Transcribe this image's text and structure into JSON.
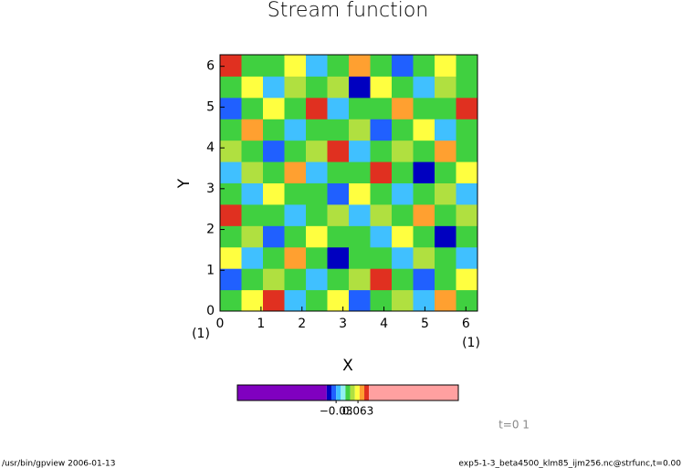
{
  "chart_data": {
    "type": "heatmap",
    "title": "Stream function",
    "xlabel": "X",
    "ylabel": "Y",
    "x_units": "(1)",
    "y_units": "(1)",
    "xlim": [
      0,
      6.2832
    ],
    "ylim": [
      0,
      6.2832
    ],
    "xticks": [
      0,
      1,
      2,
      3,
      4,
      5,
      6
    ],
    "yticks": [
      0,
      1,
      2,
      3,
      4,
      5,
      6
    ],
    "z": [
      [
        0.02,
        0.06,
        0.09,
        -0.02,
        0.02,
        0.06,
        -0.04,
        0.02,
        0.04,
        -0.02,
        0.08,
        0.02
      ],
      [
        -0.04,
        0.02,
        0.04,
        0.02,
        -0.02,
        0.02,
        0.04,
        0.1,
        0.02,
        -0.04,
        0.02,
        0.06
      ],
      [
        0.06,
        -0.02,
        0.02,
        0.08,
        0.02,
        -0.06,
        0.02,
        0.02,
        -0.02,
        0.04,
        0.02,
        -0.02
      ],
      [
        0.02,
        0.04,
        -0.04,
        0.02,
        0.06,
        0.02,
        0.02,
        -0.02,
        0.06,
        0.02,
        -0.06,
        0.02
      ],
      [
        0.1,
        0.02,
        0.02,
        -0.02,
        0.02,
        0.04,
        -0.02,
        0.04,
        0.02,
        0.08,
        0.02,
        0.04
      ],
      [
        0.02,
        -0.02,
        0.06,
        0.02,
        0.02,
        -0.04,
        0.06,
        0.02,
        -0.02,
        0.02,
        0.04,
        -0.02
      ],
      [
        -0.02,
        0.04,
        0.02,
        0.08,
        -0.02,
        0.02,
        0.02,
        0.1,
        0.02,
        -0.06,
        0.02,
        0.06
      ],
      [
        0.04,
        0.02,
        -0.04,
        0.02,
        0.04,
        0.09,
        -0.02,
        0.02,
        0.04,
        0.02,
        0.08,
        0.02
      ],
      [
        0.02,
        0.08,
        0.02,
        -0.02,
        0.02,
        0.02,
        0.04,
        -0.04,
        0.02,
        0.06,
        -0.02,
        0.02
      ],
      [
        -0.04,
        0.02,
        0.06,
        0.02,
        0.1,
        -0.02,
        0.02,
        0.02,
        0.08,
        0.02,
        0.02,
        0.09
      ],
      [
        0.02,
        0.06,
        -0.02,
        0.04,
        0.02,
        0.04,
        -0.06,
        0.06,
        0.02,
        -0.02,
        0.04,
        0.02
      ],
      [
        0.09,
        0.02,
        0.02,
        0.06,
        -0.02,
        0.02,
        0.08,
        0.02,
        -0.04,
        0.02,
        0.06,
        0.02
      ]
    ],
    "colorbar": {
      "lim": [
        -0.45,
        0.49
      ],
      "levels": [
        -0.45,
        -0.07,
        -0.05,
        -0.03,
        -0.01,
        0.01,
        0.03,
        0.05,
        0.07,
        0.09,
        0.11,
        0.49
      ],
      "colors": [
        "#8000c0",
        "#0000c0",
        "#2060ff",
        "#40c0ff",
        "#90f0f0",
        "#40d040",
        "#b0e040",
        "#ffff40",
        "#ffa030",
        "#e03020",
        "#ffa0a0"
      ],
      "ticks": [
        {
          "value": -0.03,
          "label": "−0.03"
        },
        {
          "value": 0.063,
          "label": "0.063"
        }
      ]
    },
    "time_label": "t=0 1",
    "footer_left": "/usr/bin/gpview  2006-01-13",
    "footer_right": "exp5-1-3_beta4500_klm85_ijm256.nc@strfunc,t=0.00"
  }
}
